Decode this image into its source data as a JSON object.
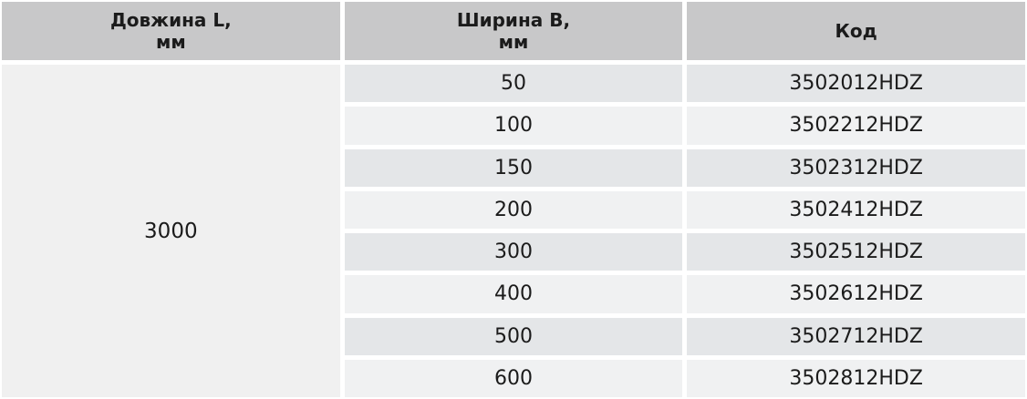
{
  "table": {
    "headers": [
      "Довжина L,\nмм",
      "Ширина B,\nмм",
      "Код"
    ],
    "length_value": "3000",
    "rows": [
      {
        "width": "50",
        "code": "3502012HDZ"
      },
      {
        "width": "100",
        "code": "3502212HDZ"
      },
      {
        "width": "150",
        "code": "3502312HDZ"
      },
      {
        "width": "200",
        "code": "3502412HDZ"
      },
      {
        "width": "300",
        "code": "3502512HDZ"
      },
      {
        "width": "400",
        "code": "3502612HDZ"
      },
      {
        "width": "500",
        "code": "3502712HDZ"
      },
      {
        "width": "600",
        "code": "3502812HDZ"
      }
    ],
    "colors": {
      "header_bg": "#c8c8c9",
      "merged_cell_bg": "#f0f0f0",
      "row_odd_bg": "#e4e6e8",
      "row_even_bg": "#f0f1f2",
      "text": "#1b1b1b",
      "gap": "#ffffff"
    }
  }
}
